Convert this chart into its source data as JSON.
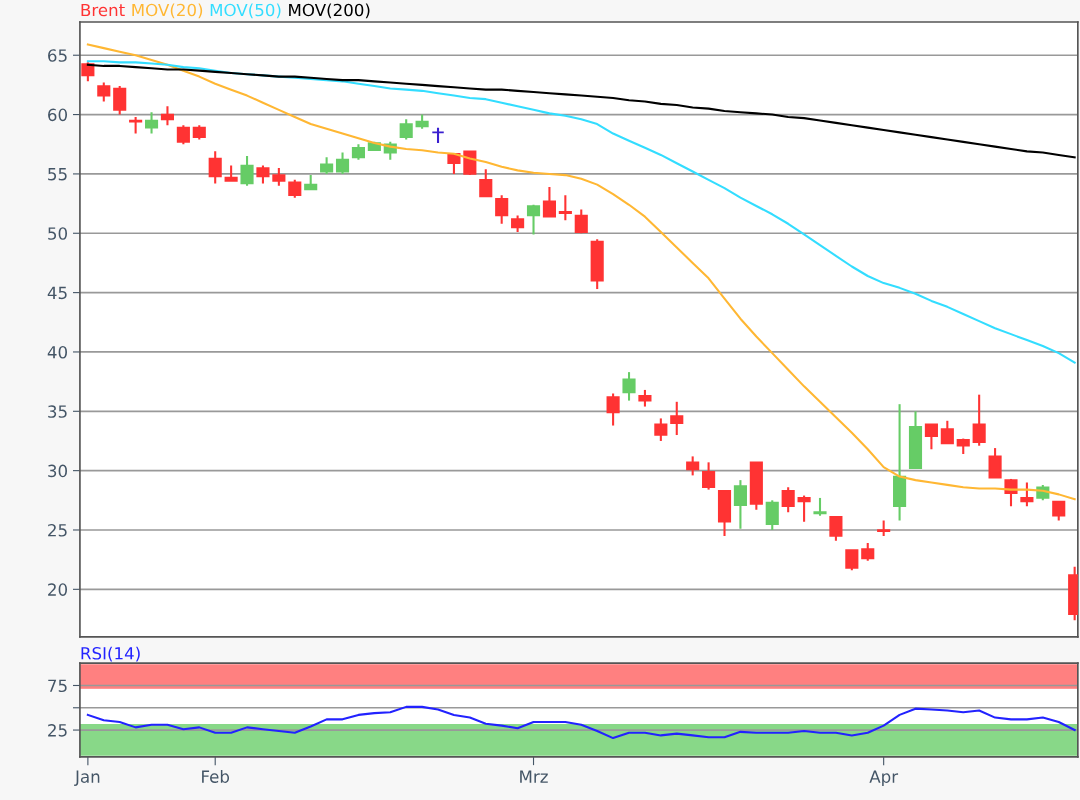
{
  "chart_data": [
    {
      "type": "candlestick",
      "categories": [
        null,
        null,
        null,
        null,
        null,
        null,
        null,
        null,
        null,
        null,
        null,
        null,
        null,
        null,
        null,
        null,
        null,
        null,
        null,
        null,
        null,
        null,
        null,
        null,
        null,
        null,
        null,
        null,
        null,
        null,
        null,
        null,
        null,
        null,
        null,
        null,
        null,
        null,
        null,
        null,
        null,
        null,
        null,
        null,
        null,
        null,
        null,
        null,
        null,
        null,
        null,
        null,
        null,
        null,
        null,
        null,
        null,
        null,
        null,
        null,
        null,
        null,
        null
      ],
      "ylim": [
        16,
        67.8
      ],
      "yticks": [
        20,
        25,
        30,
        35,
        40,
        45,
        50,
        55,
        60,
        65
      ],
      "grid": "y",
      "legend": "top left",
      "series": [
        {
          "name": "Brent",
          "color": "#ff3333",
          "ohlc": [
            [
              64.25,
              64.4,
              62.8,
              63.3
            ],
            [
              62.4,
              62.7,
              61.1,
              61.6
            ],
            [
              62.2,
              62.4,
              60.0,
              60.4
            ],
            [
              59.5,
              59.8,
              58.4,
              59.4
            ],
            [
              58.9,
              60.2,
              58.4,
              59.5
            ],
            [
              60.0,
              60.7,
              59.1,
              59.6
            ],
            [
              58.9,
              59.1,
              57.5,
              57.7
            ],
            [
              58.9,
              59.1,
              57.9,
              58.1
            ],
            [
              56.3,
              56.9,
              54.2,
              54.8
            ],
            [
              54.7,
              55.7,
              54.4,
              54.4
            ],
            [
              54.2,
              56.5,
              54.0,
              55.7
            ],
            [
              55.5,
              55.7,
              54.2,
              54.8
            ],
            [
              54.9,
              55.5,
              54.0,
              54.4
            ],
            [
              54.3,
              54.5,
              53.0,
              53.2
            ],
            [
              53.7,
              54.9,
              53.7,
              54.1
            ],
            [
              55.2,
              56.4,
              55.0,
              55.8
            ],
            [
              55.2,
              56.8,
              55.0,
              56.2
            ],
            [
              56.4,
              57.5,
              56.2,
              57.2
            ],
            [
              57.0,
              57.7,
              57.0,
              57.6
            ],
            [
              56.8,
              57.7,
              56.2,
              57.5
            ],
            [
              58.1,
              59.6,
              57.9,
              59.2
            ],
            [
              59.0,
              60.0,
              58.8,
              59.4
            ],
            [
              58.5,
              58.9,
              57.6,
              58.5
            ],
            [
              56.7,
              56.7,
              55.0,
              55.9
            ],
            [
              56.9,
              56.9,
              54.9,
              55.0
            ],
            [
              54.5,
              55.4,
              53.1,
              53.1
            ],
            [
              52.9,
              53.2,
              50.8,
              51.5
            ],
            [
              51.2,
              51.5,
              50.1,
              50.5
            ],
            [
              51.5,
              52.4,
              49.9,
              52.3
            ],
            [
              52.7,
              53.9,
              51.4,
              51.4
            ],
            [
              51.8,
              53.2,
              51.1,
              51.7
            ],
            [
              51.5,
              52.0,
              50.0,
              50.1
            ],
            [
              49.3,
              49.5,
              45.3,
              46.0
            ],
            [
              36.2,
              36.5,
              33.8,
              34.9
            ],
            [
              36.6,
              38.3,
              35.9,
              37.7
            ],
            [
              36.3,
              36.8,
              35.4,
              35.9
            ],
            [
              33.9,
              34.4,
              32.5,
              33.0
            ],
            [
              34.6,
              35.8,
              33.0,
              34.0
            ],
            [
              30.7,
              31.2,
              29.6,
              30.1
            ],
            [
              29.9,
              30.7,
              28.4,
              28.6
            ],
            [
              28.3,
              28.3,
              24.5,
              25.7
            ],
            [
              27.1,
              29.2,
              25.1,
              28.7
            ],
            [
              30.7,
              30.7,
              26.7,
              27.2
            ],
            [
              25.5,
              27.5,
              25.0,
              27.3
            ],
            [
              28.3,
              28.6,
              26.5,
              27.0
            ],
            [
              27.7,
              27.9,
              25.7,
              27.4
            ],
            [
              26.4,
              27.7,
              26.2,
              26.5
            ],
            [
              26.1,
              26.1,
              24.1,
              24.5
            ],
            [
              23.3,
              23.3,
              21.6,
              21.8
            ],
            [
              23.4,
              23.9,
              22.4,
              22.6
            ],
            [
              25.0,
              25.8,
              24.5,
              24.9
            ],
            [
              27.0,
              35.6,
              25.8,
              29.5
            ],
            [
              30.2,
              35.0,
              30.2,
              33.7
            ],
            [
              33.9,
              33.9,
              31.8,
              32.9
            ],
            [
              33.5,
              34.2,
              32.3,
              32.3
            ],
            [
              32.6,
              32.7,
              31.4,
              32.1
            ],
            [
              33.9,
              36.4,
              32.1,
              32.4
            ],
            [
              31.2,
              31.9,
              29.4,
              29.4
            ],
            [
              29.2,
              29.3,
              27.0,
              28.1
            ],
            [
              27.7,
              29.0,
              27.0,
              27.4
            ],
            [
              27.7,
              28.8,
              27.5,
              28.6
            ],
            [
              27.4,
              27.4,
              25.8,
              26.2
            ],
            [
              21.2,
              21.9,
              17.4,
              17.9
            ]
          ],
          "colors": [
            "#ff3333",
            "#ff3333",
            "#ff3333",
            "#ff3333",
            "#66cc66",
            "#ff3333",
            "#ff3333",
            "#ff3333",
            "#ff3333",
            "#ff3333",
            "#66cc66",
            "#ff3333",
            "#ff3333",
            "#ff3333",
            "#66cc66",
            "#66cc66",
            "#66cc66",
            "#66cc66",
            "#66cc66",
            "#66cc66",
            "#66cc66",
            "#66cc66",
            "#3a1fd0",
            "#ff3333",
            "#ff3333",
            "#ff3333",
            "#ff3333",
            "#ff3333",
            "#66cc66",
            "#ff3333",
            "#ff3333",
            "#ff3333",
            "#ff3333",
            "#ff3333",
            "#66cc66",
            "#ff3333",
            "#ff3333",
            "#ff3333",
            "#ff3333",
            "#ff3333",
            "#ff3333",
            "#66cc66",
            "#ff3333",
            "#66cc66",
            "#ff3333",
            "#ff3333",
            "#66cc66",
            "#ff3333",
            "#ff3333",
            "#ff3333",
            "#ff3333",
            "#66cc66",
            "#66cc66",
            "#ff3333",
            "#ff3333",
            "#ff3333",
            "#ff3333",
            "#ff3333",
            "#ff3333",
            "#ff3333",
            "#66cc66",
            "#ff3333",
            "#ff3333"
          ]
        },
        {
          "name": "MOV(20)",
          "type": "line",
          "color": "#ffb733",
          "values": [
            65.9,
            65.6,
            65.3,
            65.0,
            64.6,
            64.2,
            63.7,
            63.2,
            62.6,
            62.1,
            61.6,
            61.0,
            60.4,
            59.8,
            59.2,
            58.8,
            58.4,
            58.0,
            57.6,
            57.3,
            57.1,
            57.0,
            56.8,
            56.7,
            56.3,
            56.0,
            55.6,
            55.3,
            55.1,
            55.0,
            54.9,
            54.6,
            54.1,
            53.3,
            52.4,
            51.4,
            50.1,
            48.8,
            47.5,
            46.2,
            44.5,
            42.8,
            41.3,
            39.9,
            38.5,
            37.1,
            35.8,
            34.5,
            33.2,
            31.8,
            30.3,
            29.5,
            29.2,
            29.0,
            28.8,
            28.6,
            28.5,
            28.5,
            28.4,
            28.4,
            28.3,
            28.0,
            27.6
          ]
        },
        {
          "name": "MOV(50)",
          "type": "line",
          "color": "#33ddff",
          "values": [
            64.5,
            64.5,
            64.4,
            64.4,
            64.3,
            64.2,
            64.0,
            63.9,
            63.7,
            63.5,
            63.4,
            63.3,
            63.2,
            63.1,
            63.0,
            62.9,
            62.8,
            62.6,
            62.4,
            62.2,
            62.1,
            62.0,
            61.8,
            61.6,
            61.4,
            61.3,
            61.0,
            60.7,
            60.4,
            60.1,
            59.9,
            59.6,
            59.2,
            58.4,
            57.8,
            57.2,
            56.6,
            55.9,
            55.2,
            54.5,
            53.8,
            53.0,
            52.3,
            51.6,
            50.8,
            49.9,
            49.0,
            48.1,
            47.2,
            46.4,
            45.8,
            45.4,
            44.9,
            44.3,
            43.8,
            43.2,
            42.6,
            42.0,
            41.5,
            41.0,
            40.5,
            39.9,
            39.1
          ]
        },
        {
          "name": "MOV(200)",
          "type": "line",
          "color": "#000000",
          "values": [
            64.2,
            64.1,
            64.1,
            64.0,
            63.9,
            63.8,
            63.8,
            63.7,
            63.6,
            63.5,
            63.4,
            63.3,
            63.2,
            63.2,
            63.1,
            63.0,
            62.9,
            62.9,
            62.8,
            62.7,
            62.6,
            62.5,
            62.4,
            62.3,
            62.2,
            62.1,
            62.1,
            62.0,
            61.9,
            61.8,
            61.7,
            61.6,
            61.5,
            61.4,
            61.2,
            61.1,
            60.9,
            60.8,
            60.6,
            60.5,
            60.3,
            60.2,
            60.1,
            60.0,
            59.8,
            59.7,
            59.5,
            59.3,
            59.1,
            58.9,
            58.7,
            58.5,
            58.3,
            58.1,
            57.9,
            57.7,
            57.5,
            57.3,
            57.1,
            56.9,
            56.8,
            56.6,
            56.4
          ]
        }
      ]
    },
    {
      "type": "line",
      "categories": [
        "Jan",
        null,
        null,
        null,
        null,
        null,
        null,
        null,
        "Feb",
        null,
        null,
        null,
        null,
        null,
        null,
        null,
        null,
        null,
        null,
        null,
        null,
        null,
        null,
        null,
        null,
        null,
        null,
        null,
        "Mrz",
        null,
        null,
        null,
        null,
        null,
        null,
        null,
        null,
        null,
        null,
        null,
        null,
        null,
        null,
        null,
        null,
        null,
        null,
        null,
        null,
        null,
        "Apr",
        null,
        null,
        null,
        null,
        null,
        null,
        null,
        null,
        null,
        null,
        null,
        null
      ],
      "ylim": [
        -5,
        100
      ],
      "yticks": [
        25,
        {
          "value": 50,
          "label": null
        },
        75
      ],
      "grid": "y",
      "legend": "top left",
      "bands": [
        {
          "axis": "y",
          "from": 72,
          "to": 98,
          "color": "#ff8080"
        },
        {
          "axis": "y",
          "from": -3,
          "to": 31,
          "color": "#88d888"
        }
      ],
      "series": [
        {
          "name": "RSI(14)",
          "color": "#2222ff",
          "values": [
            42,
            36,
            34,
            28,
            31,
            31,
            26,
            28,
            22,
            22,
            28,
            26,
            24,
            22,
            29,
            37,
            37,
            42,
            44,
            45,
            51,
            51,
            48,
            42,
            39,
            32,
            30,
            27,
            34,
            34,
            34,
            31,
            24,
            16,
            22,
            22,
            19,
            21,
            19,
            17,
            17,
            23,
            22,
            22,
            22,
            24,
            22,
            22,
            19,
            22,
            30,
            42,
            49,
            48,
            47,
            45,
            47,
            39,
            37,
            37,
            39,
            34,
            25
          ]
        }
      ]
    }
  ]
}
